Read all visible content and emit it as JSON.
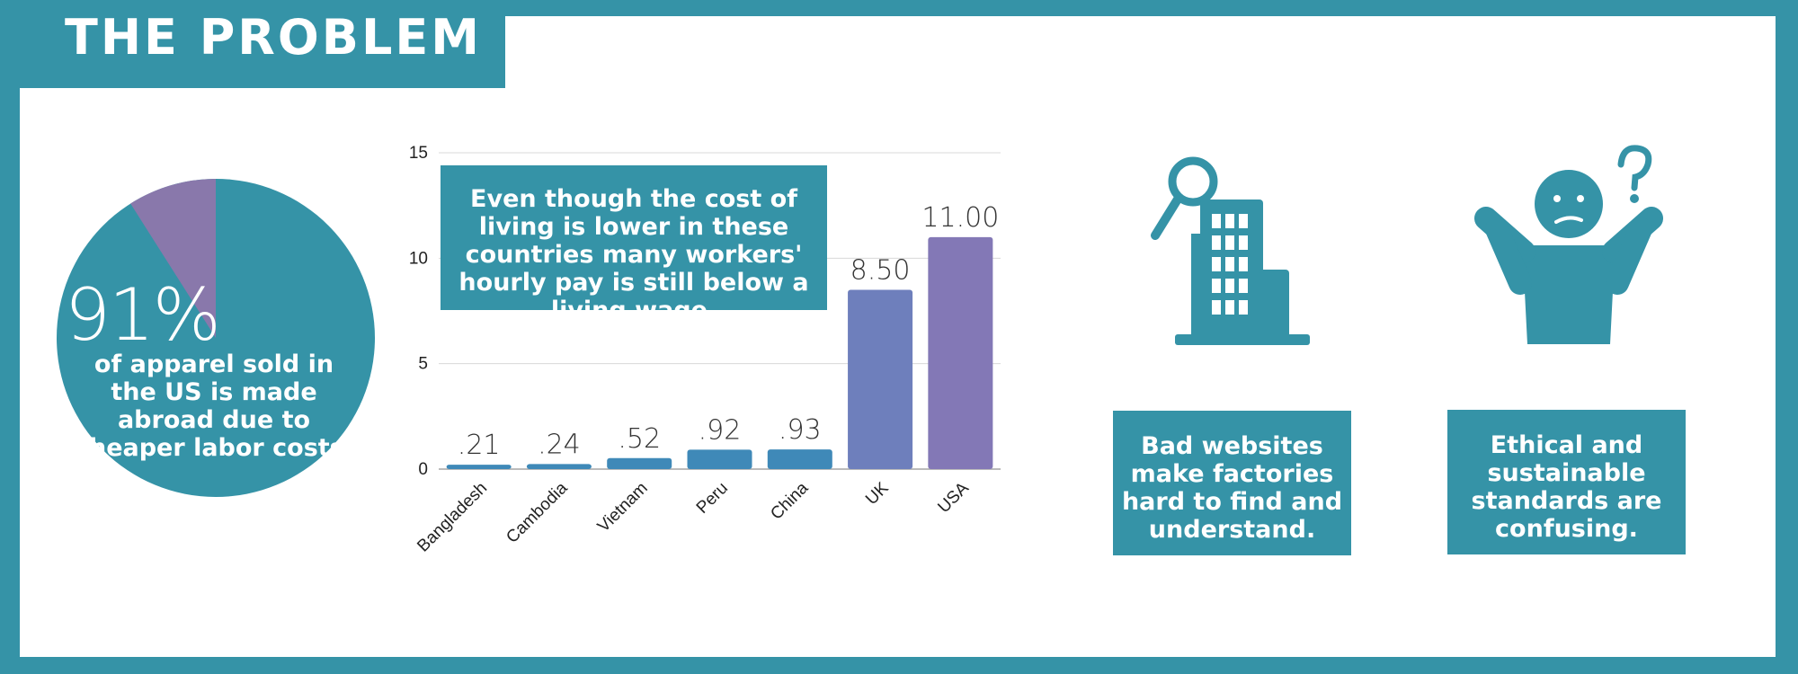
{
  "header": {
    "title": "THE PROBLEM"
  },
  "pie": {
    "percent_label": "91%",
    "caption": "of apparel sold in the US is made abroad due to cheaper labor costs.",
    "values": [
      91,
      9
    ],
    "colors": [
      "#3593a7",
      "#8978ab"
    ]
  },
  "annotation": {
    "text": "Even though the cost of living is lower in these countries many workers' hourly pay is still below a living wage."
  },
  "chart_data": {
    "type": "bar",
    "categories": [
      "Bangladesh",
      "Cambodia",
      "Vietnam",
      "Peru",
      "China",
      "UK",
      "USA"
    ],
    "values": [
      0.21,
      0.24,
      0.52,
      0.92,
      0.93,
      8.5,
      11.0
    ],
    "data_labels": [
      ".21",
      ".24",
      ".52",
      ".92",
      ".93",
      "8.50",
      "11.00"
    ],
    "yticks": [
      "0",
      "5",
      "10",
      "15"
    ],
    "ylim": [
      0,
      15
    ],
    "grid": true,
    "colors": [
      "#3f89b8",
      "#3f89b8",
      "#3f89b8",
      "#3f89b8",
      "#3f89b8",
      "#6e7fbc",
      "#8378b6"
    ]
  },
  "cards": [
    {
      "icon": "factory-search-icon",
      "text": "Bad websites make factories hard to find and understand."
    },
    {
      "icon": "confused-person-icon",
      "text": "Ethical and sustainable standards are confusing."
    }
  ]
}
